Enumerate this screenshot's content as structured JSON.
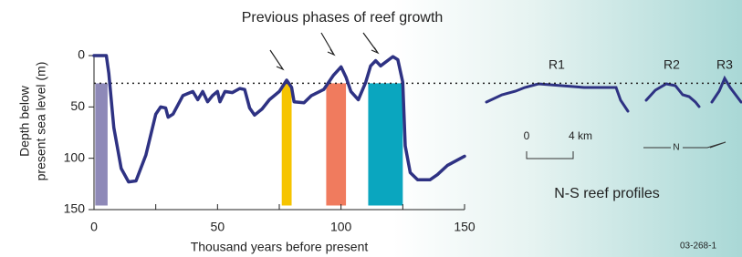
{
  "chart_data": {
    "type": "line",
    "title": "Previous phases of reef growth",
    "xlabel": "Thousand years before present",
    "ylabel": [
      "Depth below",
      "present sea level (m)"
    ],
    "xlim": [
      0,
      150
    ],
    "ylim": [
      150,
      0
    ],
    "xticks": [
      0,
      50,
      100,
      150
    ],
    "xminor": [
      25,
      75,
      125
    ],
    "yticks": [
      0,
      50,
      100,
      150
    ],
    "reference_depth": 27,
    "color": "#2e3283",
    "x": [
      0,
      5,
      6,
      8,
      11,
      14,
      17,
      21,
      25,
      27,
      29,
      30,
      32,
      36,
      40,
      42,
      44,
      46,
      48,
      50,
      51,
      53,
      56,
      59,
      61,
      63,
      65,
      68,
      71,
      75,
      78,
      80,
      81,
      85,
      88,
      93,
      97,
      100,
      102,
      104,
      107,
      110,
      112,
      114,
      116,
      121,
      123,
      125,
      126,
      128,
      131,
      136,
      139,
      143,
      150
    ],
    "values": [
      0,
      0,
      17,
      70,
      110,
      123,
      122,
      97,
      57,
      50,
      51,
      60,
      57,
      39,
      35,
      43,
      35,
      45,
      39,
      35,
      45,
      35,
      36,
      32,
      33,
      51,
      58,
      52,
      43,
      35,
      24,
      31,
      45,
      46,
      39,
      33,
      19,
      11,
      21,
      35,
      43,
      26,
      10,
      5,
      10,
      1,
      4,
      26,
      88,
      114,
      121,
      121,
      116,
      107,
      98
    ],
    "bands": [
      {
        "x": [
          0.5,
          5.5
        ],
        "depth": [
          27,
          146
        ],
        "color": "#8e89b8"
      },
      {
        "x": [
          76,
          80
        ],
        "depth": [
          27,
          146
        ],
        "color": "#f6c400"
      },
      {
        "x": [
          94,
          102
        ],
        "depth": [
          27,
          146
        ],
        "color": "#f07b5e"
      },
      {
        "x": [
          111,
          125
        ],
        "depth": [
          27,
          146
        ],
        "color": "#0aa6bf"
      }
    ],
    "profiles": {
      "labels": [
        "R1",
        "R2",
        "R3"
      ],
      "scale": [
        "0",
        "4 km"
      ],
      "north": "N",
      "caption": "N-S reef profiles"
    },
    "figure_id": "03-268-1"
  }
}
